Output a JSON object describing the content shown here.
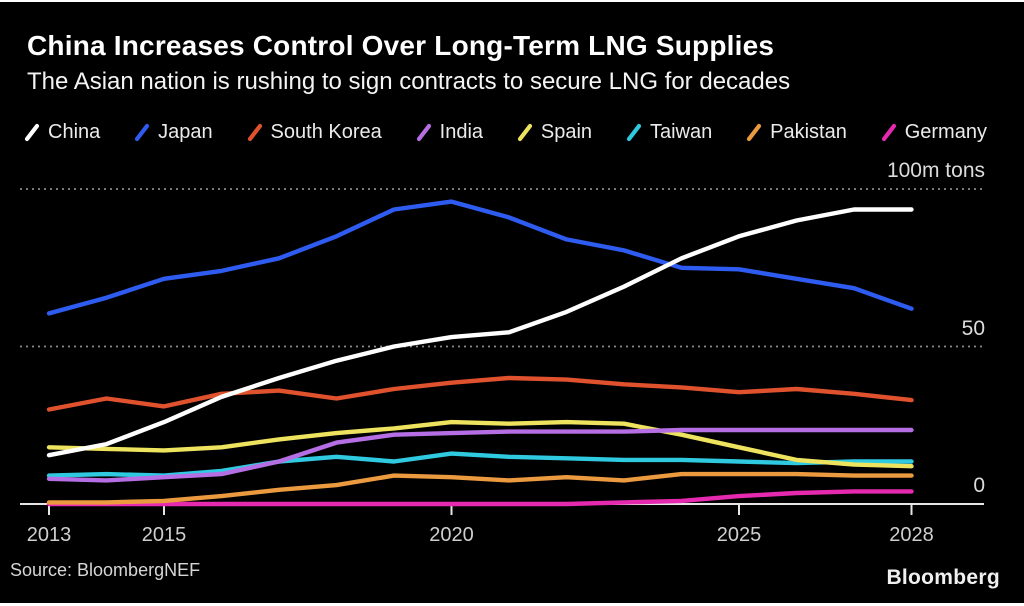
{
  "header": {
    "title": "China Increases Control Over Long-Term LNG Supplies",
    "subtitle": "The Asian nation is rushing to sign contracts to secure LNG for decades"
  },
  "footer": {
    "source": "Source: BloombergNEF",
    "brand": "Bloomberg"
  },
  "colors": {
    "background": "#000000",
    "title_text": "#ffffff",
    "subtitle_text": "#f4f4f4",
    "legend_text": "#ebebeb",
    "tick_label": "#cfcfcf",
    "axis_line": "#e6e6e6",
    "gridline": "#8a8a8a"
  },
  "chart_data": {
    "type": "line",
    "title": "China Increases Control Over Long-Term LNG Supplies",
    "unit_label": "100m tons",
    "xlabel": "",
    "ylabel": "100m tons",
    "xlim": [
      2013,
      2028
    ],
    "ylim": [
      0,
      105
    ],
    "grid": "horizontal dotted at 50 and 100, solid baseline at 0",
    "legend_position": "top",
    "x": [
      2013,
      2014,
      2015,
      2016,
      2017,
      2018,
      2019,
      2020,
      2021,
      2022,
      2023,
      2024,
      2025,
      2026,
      2027,
      2028
    ],
    "x_tick_labels": [
      "2013",
      "2015",
      "2020",
      "2025",
      "2028"
    ],
    "x_tick_values": [
      2013,
      2015,
      2020,
      2025,
      2028
    ],
    "y_axis_labels": [
      {
        "value": 100,
        "label": "100m tons"
      },
      {
        "value": 50,
        "label": "50"
      },
      {
        "value": 0,
        "label": "0"
      }
    ],
    "series": [
      {
        "name": "China",
        "color": "#ffffff",
        "values": [
          15.5,
          19,
          26,
          34,
          40,
          45.5,
          50,
          53,
          54.5,
          61,
          69,
          78,
          85,
          90,
          93.5,
          93.5
        ]
      },
      {
        "name": "Japan",
        "color": "#2e5cf0",
        "values": [
          60.5,
          65.5,
          71.5,
          74,
          78,
          85,
          93.5,
          96,
          91,
          84,
          80.5,
          75,
          74.5,
          71.5,
          68.5,
          62
        ]
      },
      {
        "name": "South Korea",
        "color": "#e0522e",
        "values": [
          30,
          33.5,
          31,
          35,
          36,
          33.5,
          36.5,
          38.5,
          40,
          39.5,
          38,
          37,
          35.5,
          36.5,
          35,
          33
        ]
      },
      {
        "name": "India",
        "color": "#b56ee4",
        "values": [
          8,
          7.5,
          8.5,
          9.5,
          13.5,
          19.5,
          22,
          22.5,
          23,
          23,
          23,
          23.5,
          23.5,
          23.5,
          23.5,
          23.5
        ]
      },
      {
        "name": "Spain",
        "color": "#ede35e",
        "values": [
          18,
          17.5,
          17,
          18,
          20.5,
          22.5,
          24,
          26,
          25.5,
          26,
          25.5,
          22,
          18,
          14,
          12.5,
          12
        ]
      },
      {
        "name": "Taiwan",
        "color": "#2fc9e0",
        "values": [
          9,
          9.5,
          9,
          10.5,
          13.5,
          15,
          13.5,
          16,
          15,
          14.5,
          14,
          14,
          13.5,
          13,
          13.5,
          13.5
        ]
      },
      {
        "name": "Pakistan",
        "color": "#eb9a40",
        "values": [
          0.5,
          0.5,
          1,
          2.5,
          4.5,
          6,
          9,
          8.5,
          7.5,
          8.5,
          7.5,
          9.5,
          9.5,
          9.5,
          9,
          9
        ]
      },
      {
        "name": "Germany",
        "color": "#e62ab0",
        "values": [
          0,
          0,
          0,
          0,
          0,
          0,
          0,
          0,
          0,
          0,
          0.5,
          1,
          2.5,
          3.5,
          4,
          4
        ]
      }
    ]
  }
}
